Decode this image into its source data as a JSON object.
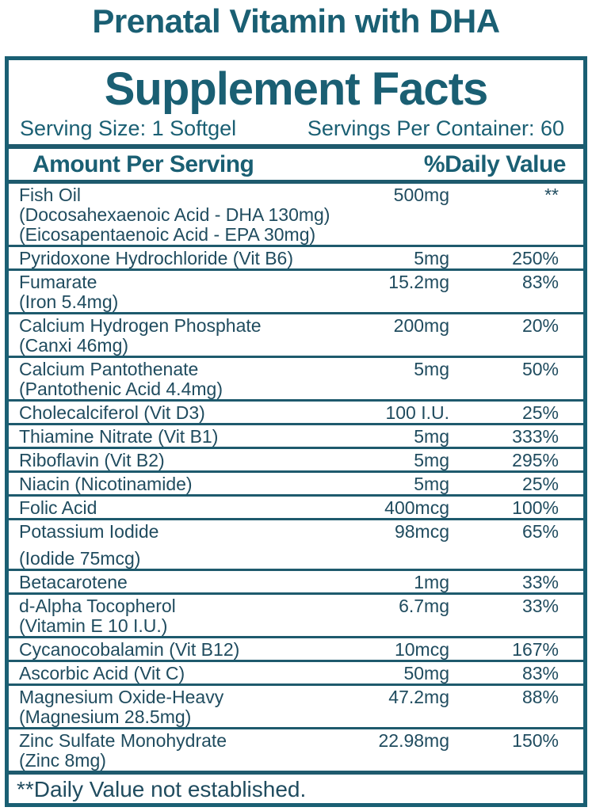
{
  "page_title": "Prenatal Vitamin with DHA",
  "colors": {
    "accent": "#1A5F73",
    "ink": "#204C5F",
    "line": "#1E5A6D",
    "bg": "#ffffff"
  },
  "panel": {
    "title": "Supplement Facts",
    "serving_size": "Serving Size: 1 Softgel",
    "servings_per_container": "Servings Per Container: 60",
    "columns": {
      "amount_header": "Amount Per Serving",
      "dv_header": "%Daily Value"
    },
    "rows": [
      {
        "name": "Fish Oil",
        "sub": [
          "(Docosahexaenoic Acid - DHA 130mg)",
          "(Eicosapentaenoic Acid - EPA 30mg)"
        ],
        "amount": "500mg",
        "dv": "**"
      },
      {
        "name": "Pyridoxone Hydrochloride (Vit B6)",
        "sub": [],
        "amount": "5mg",
        "dv": "250%"
      },
      {
        "name": "Fumarate",
        "sub": [
          "(Iron 5.4mg)"
        ],
        "amount": "15.2mg",
        "dv": "83%"
      },
      {
        "name": "Calcium Hydrogen Phosphate",
        "sub": [
          "(Canxi 46mg)"
        ],
        "amount": "200mg",
        "dv": "20%"
      },
      {
        "name": "Calcium Pantothenate",
        "sub": [
          "(Pantothenic Acid 4.4mg)"
        ],
        "amount": "5mg",
        "dv": "50%"
      },
      {
        "name": "Cholecalciferol (Vit D3)",
        "sub": [],
        "amount": "100 I.U.",
        "dv": "25%"
      },
      {
        "name": "Thiamine Nitrate (Vit B1)",
        "sub": [],
        "amount": "5mg",
        "dv": "333%"
      },
      {
        "name": "Riboflavin (Vit B2)",
        "sub": [],
        "amount": "5mg",
        "dv": "295%"
      },
      {
        "name": "Niacin (Nicotinamide)",
        "sub": [],
        "amount": "5mg",
        "dv": "25%"
      },
      {
        "name": "Folic Acid",
        "sub": [],
        "amount": "400mcg",
        "dv": "100%"
      },
      {
        "name": "Potassium Iodide",
        "sub": [
          "(Iodide 75mcg)"
        ],
        "spaced_sub": true,
        "amount": "98mcg",
        "dv": "65%"
      },
      {
        "name": "Betacarotene",
        "sub": [],
        "amount": "1mg",
        "dv": "33%"
      },
      {
        "name": "d-Alpha Tocopherol",
        "sub": [
          "(Vitamin E 10 I.U.)"
        ],
        "amount": "6.7mg",
        "dv": "33%"
      },
      {
        "name": "Cycanocobalamin (Vit B12)",
        "sub": [],
        "amount": "10mcg",
        "dv": "167%"
      },
      {
        "name": "Ascorbic Acid (Vit C)",
        "sub": [],
        "amount": "50mg",
        "dv": "83%"
      },
      {
        "name": "Magnesium Oxide-Heavy",
        "sub": [
          "(Magnesium 28.5mg)"
        ],
        "amount": "47.2mg",
        "dv": "88%"
      },
      {
        "name": "Zinc Sulfate Monohydrate",
        "sub": [
          "(Zinc 8mg)"
        ],
        "amount": "22.98mg",
        "dv": "150%"
      }
    ],
    "footnote": "**Daily Value not established."
  }
}
